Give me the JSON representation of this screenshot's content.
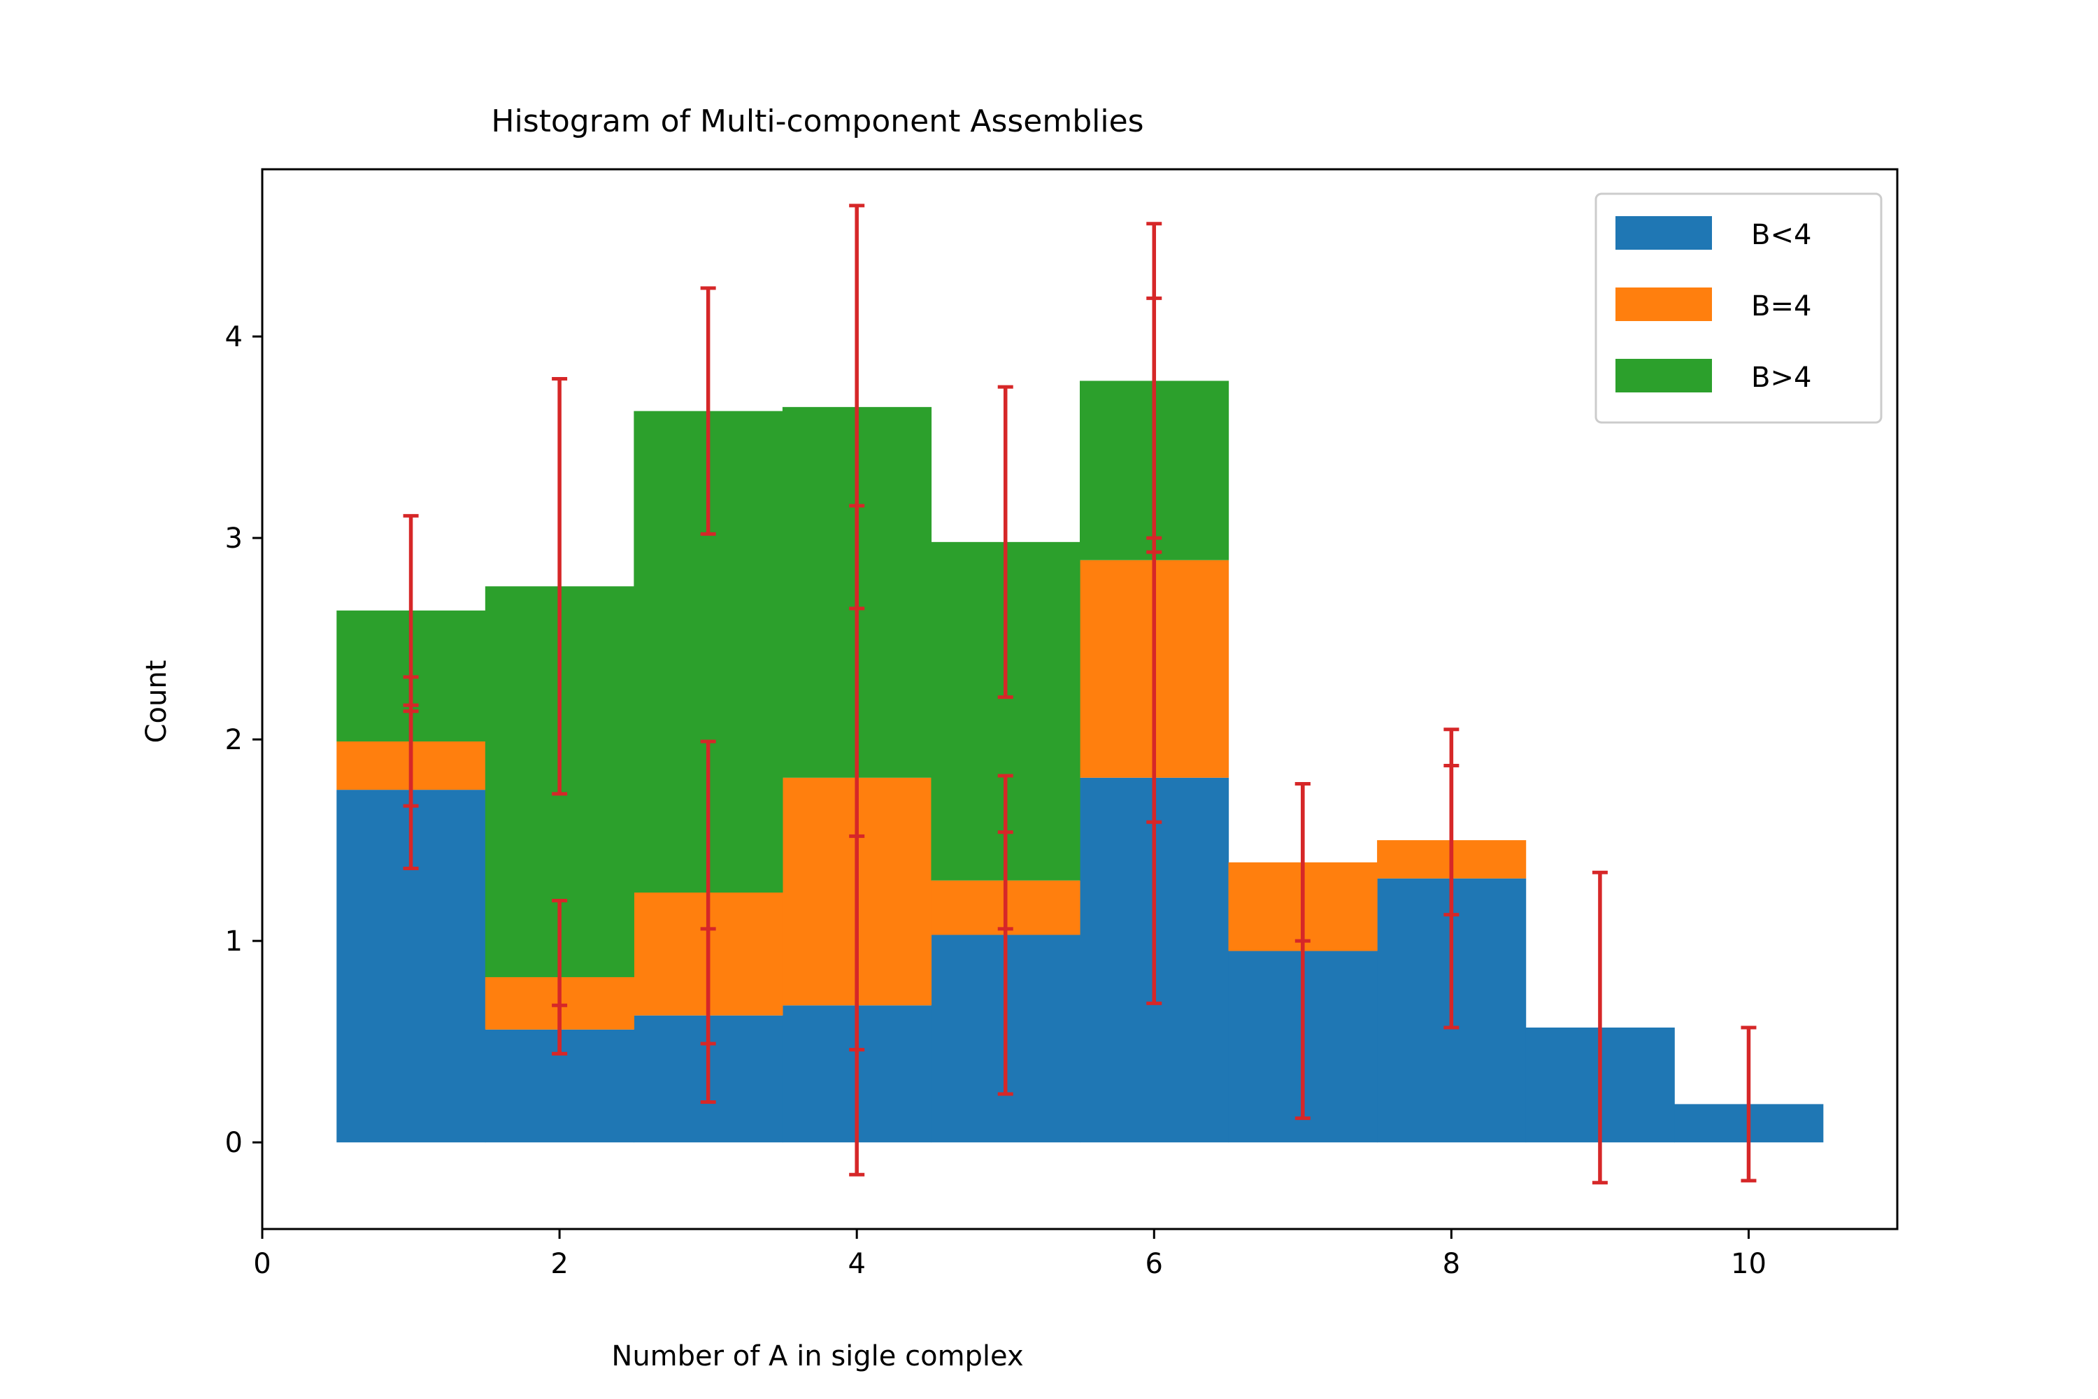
{
  "chart_data": {
    "type": "bar",
    "stacked": true,
    "title": "Histogram of Multi-component Assemblies",
    "xlabel": "Number of A in sigle complex",
    "ylabel": "Count",
    "xlim": [
      0,
      11
    ],
    "ylim": [
      -0.43,
      4.83
    ],
    "xticks": [
      0,
      2,
      4,
      6,
      8,
      10
    ],
    "yticks": [
      0,
      1,
      2,
      3,
      4
    ],
    "grid": false,
    "legend_position": "top-right",
    "bin_width": 1,
    "x": [
      1,
      2,
      3,
      4,
      5,
      6,
      7,
      8,
      9,
      10
    ],
    "series": [
      {
        "name": "B<4",
        "color": "#1f77b4",
        "values": [
          1.75,
          0.56,
          0.63,
          0.68,
          1.03,
          1.81,
          0.95,
          1.31,
          0.57,
          0.19
        ],
        "errors": [
          0.39,
          0.12,
          0.43,
          0.84,
          0.79,
          1.12,
          0.83,
          0.74,
          0.77,
          0.38
        ]
      },
      {
        "name": "B=4",
        "color": "#ff7f0e",
        "values": [
          0.24,
          0.26,
          0.61,
          1.13,
          0.27,
          1.08,
          0.44,
          0.19,
          0,
          0
        ],
        "errors": [
          0.32,
          0.38,
          0.75,
          1.35,
          0.24,
          1.3,
          0.39,
          0.37,
          0,
          0
        ]
      },
      {
        "name": "B>4",
        "color": "#2ca02c",
        "values": [
          0.65,
          1.94,
          2.39,
          1.84,
          1.68,
          0.89,
          0,
          0,
          0,
          0
        ],
        "errors": [
          0.47,
          1.03,
          0.61,
          1.0,
          0.77,
          0.78,
          0,
          0,
          0,
          0
        ]
      }
    ],
    "error_color": "#d62728"
  }
}
